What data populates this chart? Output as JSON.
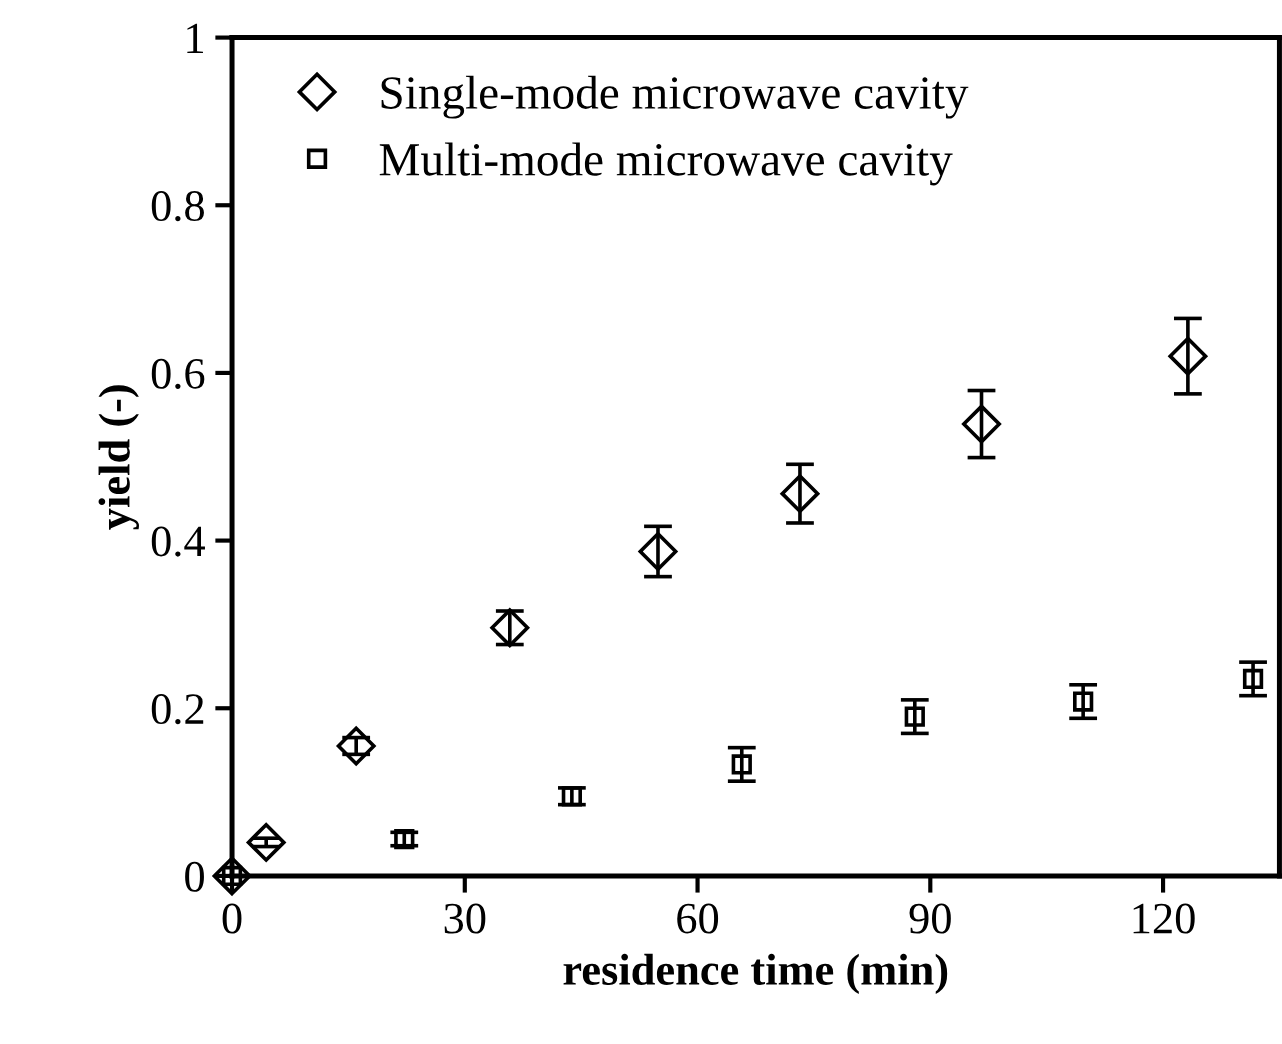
{
  "chart_data": {
    "type": "scatter",
    "xlabel": "residence time (min)",
    "ylabel": "yield (-)",
    "xlim": [
      0,
      135
    ],
    "ylim": [
      0,
      1
    ],
    "xticks": [
      0,
      30,
      60,
      90,
      120
    ],
    "yticks": [
      0,
      0.2,
      0.4,
      0.6,
      0.8,
      1
    ],
    "grid": false,
    "legend": "top left",
    "series": [
      {
        "name": "Single-mode microwave cavity",
        "color": "#000000",
        "marker": "diamond",
        "x": [
          0,
          4.4,
          16,
          35.8,
          54.9,
          73.2,
          96.6,
          123.2
        ],
        "values": [
          0,
          0.04,
          0.155,
          0.296,
          0.387,
          0.456,
          0.539,
          0.62
        ],
        "errors": [
          null,
          0.005,
          0.01,
          0.02,
          0.03,
          0.035,
          0.04,
          0.045
        ]
      },
      {
        "name": "Multi-mode microwave cavity",
        "color": "#000000",
        "marker": "square",
        "x": [
          0,
          22.2,
          43.8,
          65.7,
          88,
          109.7,
          131.6
        ],
        "values": [
          0,
          0.044,
          0.095,
          0.133,
          0.19,
          0.208,
          0.235
        ],
        "errors": [
          null,
          0.008,
          0.01,
          0.02,
          0.02,
          0.02,
          0.02
        ]
      }
    ]
  }
}
